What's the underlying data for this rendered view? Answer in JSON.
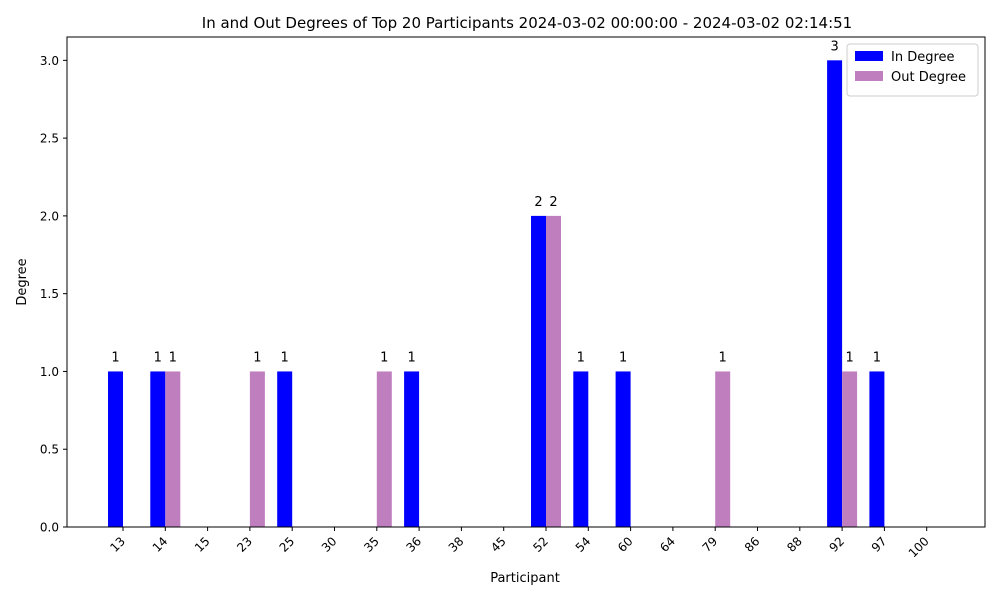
{
  "chart_data": {
    "type": "bar",
    "title": "In and Out Degrees of Top 20 Participants 2024-03-02 00:00:00 - 2024-03-02 02:14:51",
    "xlabel": "Participant",
    "ylabel": "Degree",
    "categories": [
      "13",
      "14",
      "15",
      "23",
      "25",
      "30",
      "35",
      "36",
      "38",
      "45",
      "52",
      "54",
      "60",
      "64",
      "79",
      "86",
      "88",
      "92",
      "97",
      "100"
    ],
    "series": [
      {
        "name": "In Degree",
        "color": "#0000ff",
        "values": [
          1,
          1,
          0,
          0,
          1,
          0,
          0,
          1,
          0,
          0,
          2,
          1,
          1,
          0,
          0,
          0,
          0,
          3,
          1,
          0
        ]
      },
      {
        "name": "Out Degree",
        "color": "#bf7fbf",
        "values": [
          0,
          1,
          0,
          1,
          0,
          0,
          1,
          0,
          0,
          0,
          2,
          0,
          0,
          0,
          1,
          0,
          0,
          1,
          0,
          0
        ]
      }
    ],
    "ylim": [
      0,
      3.15
    ],
    "yticks": [
      "0.0",
      "0.5",
      "1.0",
      "1.5",
      "2.0",
      "2.5",
      "3.0"
    ],
    "legend_position": "top-right",
    "grid": false
  }
}
